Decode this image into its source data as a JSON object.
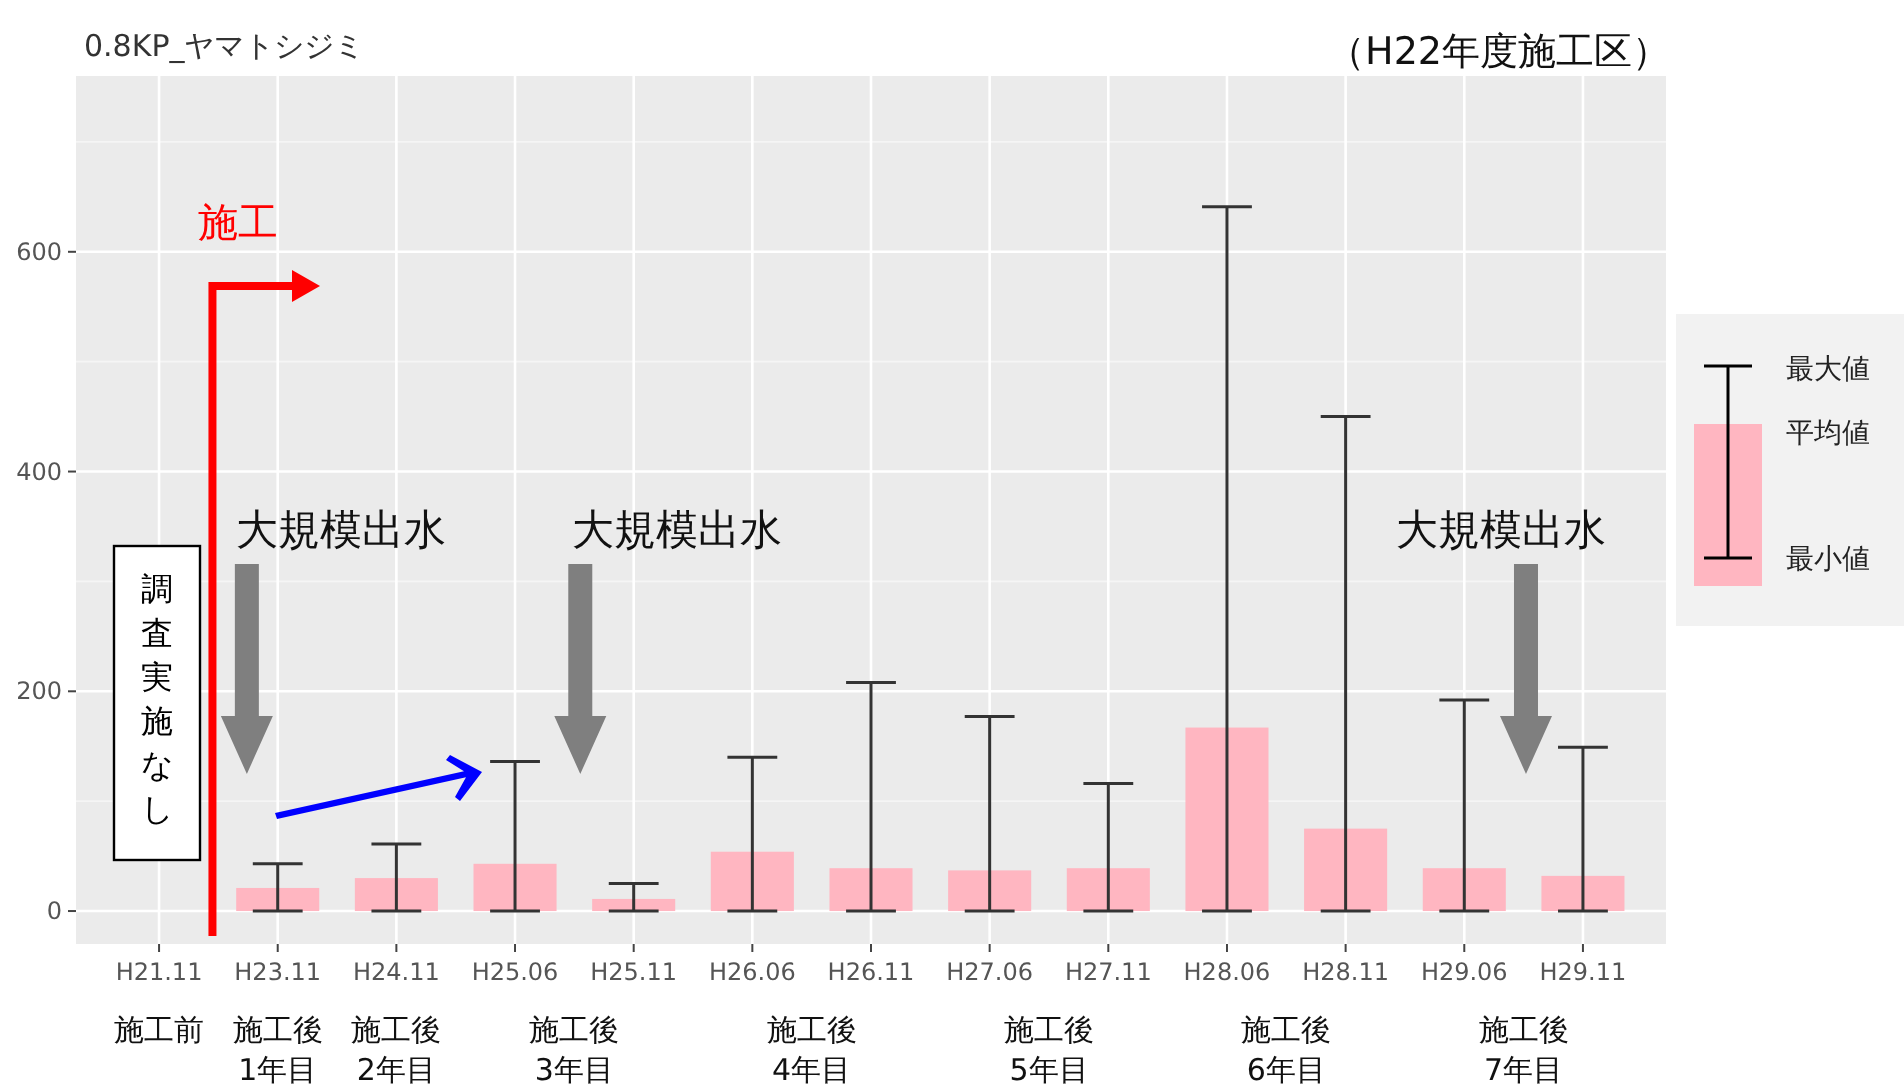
{
  "chart_data": {
    "type": "bar",
    "title": "0.8KP_ヤマトシジミ",
    "subtitle": "（H22年度施工区）",
    "categories": [
      "H21.11",
      "H23.11",
      "H24.11",
      "H25.06",
      "H25.11",
      "H26.06",
      "H26.11",
      "H27.06",
      "H27.11",
      "H28.06",
      "H28.11",
      "H29.06",
      "H29.11"
    ],
    "series": [
      {
        "name": "平均値",
        "color": "#ffb6c1",
        "values": [
          null,
          21,
          30,
          43,
          11,
          54,
          39,
          37,
          39,
          167,
          75,
          39,
          32
        ],
        "errors": [
          null,
          [
            0,
            43
          ],
          [
            0,
            61
          ],
          [
            0,
            136
          ],
          [
            0,
            25
          ],
          [
            0,
            140
          ],
          [
            0,
            208
          ],
          [
            0,
            177
          ],
          [
            0,
            116
          ],
          [
            0,
            641
          ],
          [
            0,
            450
          ],
          [
            0,
            192
          ],
          [
            0,
            149
          ]
        ]
      }
    ],
    "ylim": [
      -30,
      760
    ],
    "yticks": [
      0,
      200,
      400,
      600
    ],
    "grid": true,
    "legend": "right",
    "annotations": [
      "施工",
      "調査実施なし",
      "大規模出水",
      "大規模出水",
      "大規模出水",
      "最大値",
      "最小値",
      "施工前",
      "施工後\n1年目",
      "施工後\n2年目",
      "施工後\n3年目",
      "施工後\n4年目",
      "施工後\n5年目",
      "施工後\n6年目",
      "施工後\n7年目"
    ]
  }
}
